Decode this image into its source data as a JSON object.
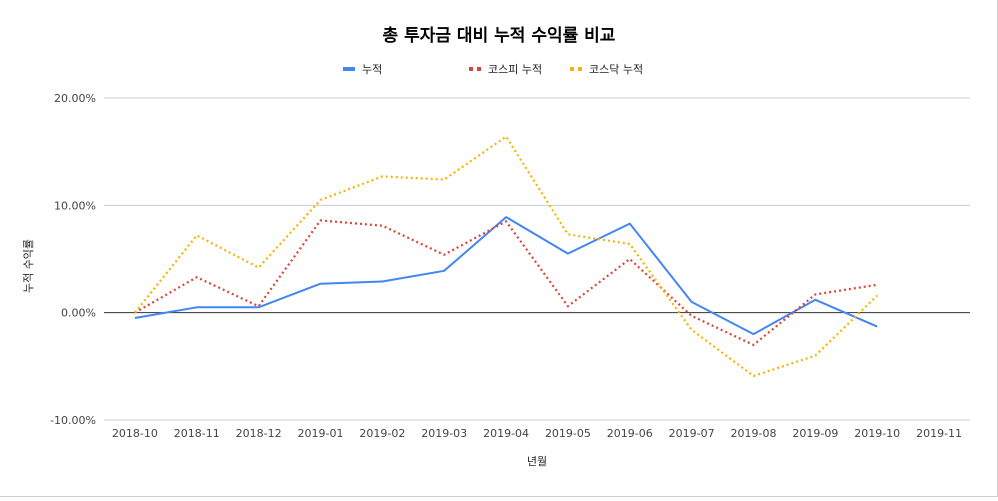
{
  "chart_data": {
    "type": "line",
    "title": "총 투자금 대비 누적 수익률 비교",
    "xlabel": "년월",
    "ylabel": "누적 수익률",
    "ylim": [
      -10,
      20
    ],
    "yticks": [
      -10,
      0,
      10,
      20
    ],
    "ytick_labels": [
      "-10.00%",
      "0.00%",
      "10.00%",
      "20.00%"
    ],
    "legend_position": "top",
    "categories": [
      "2018-10",
      "2018-11",
      "2018-12",
      "2019-01",
      "2019-02",
      "2019-03",
      "2019-04",
      "2019-05",
      "2019-06",
      "2019-07",
      "2019-08",
      "2019-09",
      "2019-10",
      "2019-11"
    ],
    "series": [
      {
        "name": "누적",
        "color": "#4285f4",
        "style": "solid",
        "values": [
          -0.5,
          0.5,
          0.5,
          2.7,
          2.9,
          3.9,
          8.9,
          5.5,
          8.3,
          1.0,
          -2.0,
          1.2,
          -1.3,
          null
        ]
      },
      {
        "name": "코스피 누적",
        "color": "#db4437",
        "style": "dotted",
        "values": [
          0.0,
          3.3,
          0.6,
          8.6,
          8.1,
          5.4,
          8.5,
          0.6,
          5.0,
          -0.3,
          -3.0,
          1.7,
          2.6,
          null
        ]
      },
      {
        "name": "코스닥 누적",
        "color": "#f4b400",
        "style": "dotted",
        "values": [
          0.0,
          7.2,
          4.2,
          10.5,
          12.7,
          12.4,
          16.4,
          7.3,
          6.4,
          -1.6,
          -5.9,
          -4.0,
          1.6,
          null
        ]
      }
    ]
  }
}
